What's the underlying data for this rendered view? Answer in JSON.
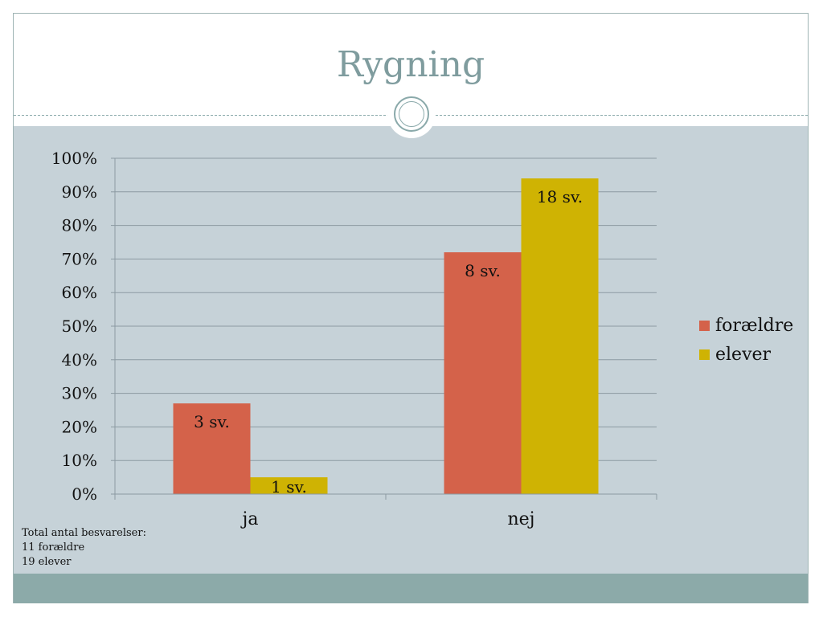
{
  "slide": {
    "title": "Rygning",
    "note_lines": [
      "Total antal besvarelser:",
      "11 forældre",
      "19 elever"
    ]
  },
  "colors": {
    "background": "#c6d2d8",
    "title": "#7f9c9e",
    "footer": "#8caaa9",
    "foraeldre": "#d4624a",
    "elever": "#cfb303"
  },
  "chart_data": {
    "type": "bar",
    "categories": [
      "ja",
      "nej"
    ],
    "series": [
      {
        "name": "forældre",
        "values": [
          27,
          72
        ],
        "labels": [
          "3 sv.",
          "8 sv."
        ],
        "color": "#d4624a"
      },
      {
        "name": "elever",
        "values": [
          5,
          94
        ],
        "labels": [
          "1 sv.",
          "18 sv."
        ],
        "color": "#cfb303"
      }
    ],
    "ylim": [
      0,
      100
    ],
    "yticks": [
      "0%",
      "10%",
      "20%",
      "30%",
      "40%",
      "50%",
      "60%",
      "70%",
      "80%",
      "90%",
      "100%"
    ],
    "grid": true,
    "legend": "right"
  }
}
